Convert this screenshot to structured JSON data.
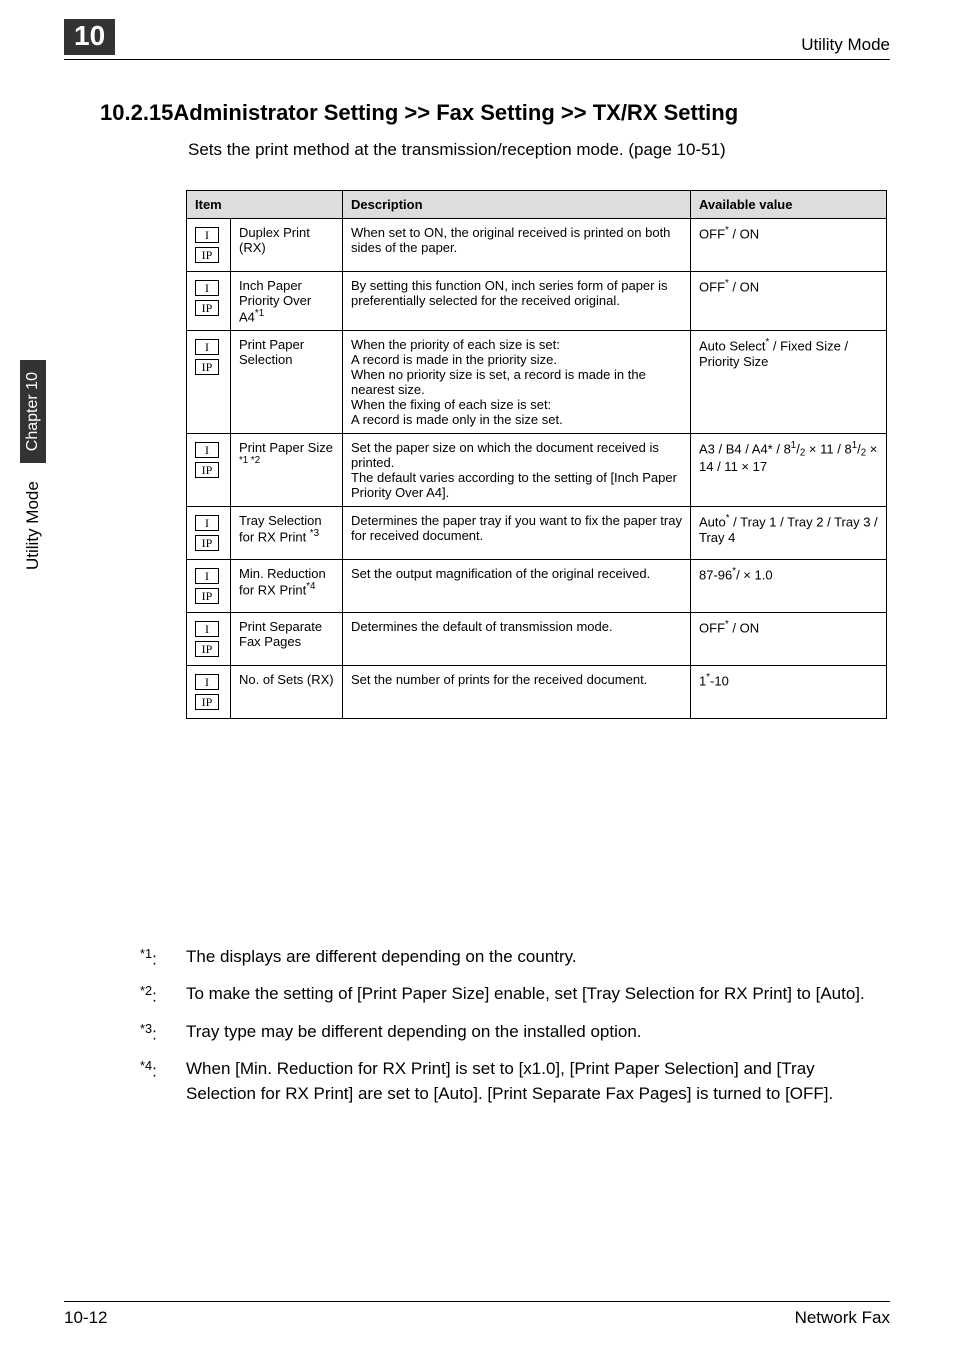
{
  "header": {
    "chapter_number": "10",
    "right_text": "Utility Mode"
  },
  "section": {
    "title": "10.2.15Administrator Setting >> Fax Setting >> TX/RX Setting",
    "intro": "Sets the print method at the transmission/reception mode. (page 10-51)"
  },
  "table": {
    "headers": {
      "item": "Item",
      "description": "Description",
      "value": "Available value"
    },
    "icon_labels": {
      "i": "I",
      "ip": "IP"
    },
    "rows": [
      {
        "name": "Duplex Print (RX)",
        "desc": "When set to ON, the original received is printed on both sides of the paper.",
        "value_html": "OFF<sup>*</sup> / ON"
      },
      {
        "name_html": "Inch Paper Priority Over A4<sup>*1</sup>",
        "desc": "By setting this function ON, inch series form of paper is preferentially selected for the received original.",
        "value_html": "OFF<sup>*</sup> / ON"
      },
      {
        "name": "Print Paper Selection",
        "desc": "When the priority of each size is set:\nA record is made in the priority size.\nWhen no priority size is set, a record is made in the nearest size.\nWhen the fixing of each size is set:\nA record is made only in the size set.",
        "value_html": "Auto Select<sup>*</sup> / Fixed Size / Priority Size"
      },
      {
        "name_html": "Print Paper Size <sup>*1 *2</sup>",
        "desc": "Set the paper size on which the document received is printed.\nThe default varies according to the setting of [Inch Paper Priority Over A4].",
        "value_html": "A3 / B4 / A4* / 8<sup>1</sup>/<sub>2</sub> × 11 / 8<sup>1</sup>/<sub>2</sub> × 14 / 11 × 17"
      },
      {
        "name_html": "Tray Selection for RX Print <sup>*3</sup>",
        "desc": "Determines the paper tray if you want to fix the paper tray for received document.",
        "value_html": "Auto<sup>*</sup> / Tray 1 / Tray 2 / Tray 3 / Tray 4"
      },
      {
        "name_html": "Min. Reduction for RX Print<sup>*4</sup>",
        "desc": "Set the output magnification of the original received.",
        "value_html": "87-96<sup>*</sup>/ × 1.0"
      },
      {
        "name": "Print Separate Fax Pages",
        "desc": "Determines the default of transmission mode.",
        "value_html": "OFF<sup>*</sup> / ON"
      },
      {
        "name": "No. of Sets (RX)",
        "desc": "Set the number of prints for the received document.",
        "value_html": "1<sup>*</sup>-10"
      }
    ]
  },
  "footnotes": [
    {
      "marker": "*1:",
      "text": "The displays are different depending on the country."
    },
    {
      "marker": "*2:",
      "text": "To make the setting of [Print Paper Size] enable, set [Tray Selection for RX Print] to [Auto]."
    },
    {
      "marker": "*3:",
      "text": "Tray type may be different depending on the installed option."
    },
    {
      "marker": "*4:",
      "text": "When [Min. Reduction for RX Print] is set to [x1.0], [Print Paper Selection] and [Tray Selection for RX Print] are set to [Auto]. [Print Separate Fax Pages] is turned to [OFF]."
    }
  ],
  "footer": {
    "left": "10-12",
    "right": "Network Fax"
  },
  "side": {
    "label": "Utility Mode",
    "chapter": "Chapter 10"
  }
}
